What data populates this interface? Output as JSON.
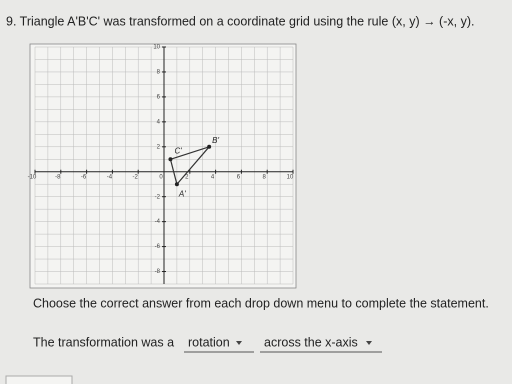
{
  "question": {
    "text": "9. Triangle A'B'C' was transformed on a coordinate grid using the rule (x, y) → (-x, y)."
  },
  "grid": {
    "xlim": [
      -10,
      10
    ],
    "ylim": [
      -9,
      10
    ],
    "xticks": [
      -10,
      -8,
      -6,
      -4,
      -2,
      0,
      2,
      4,
      6,
      8,
      10
    ],
    "yticks": [
      10,
      8,
      6,
      4,
      2,
      -2,
      -4,
      -6,
      -8
    ],
    "points": [
      {
        "label": "C'",
        "x": 0.5,
        "y": 1
      },
      {
        "label": "B'",
        "x": 3.5,
        "y": 2
      },
      {
        "label": "A'",
        "x": 1,
        "y": -1
      }
    ]
  },
  "instruction": "Choose the correct answer from each drop down menu to complete the statement.",
  "statement": {
    "prefix": "The transformation was a",
    "dropdown1": "rotation",
    "dropdown2": "across the x-axis"
  }
}
